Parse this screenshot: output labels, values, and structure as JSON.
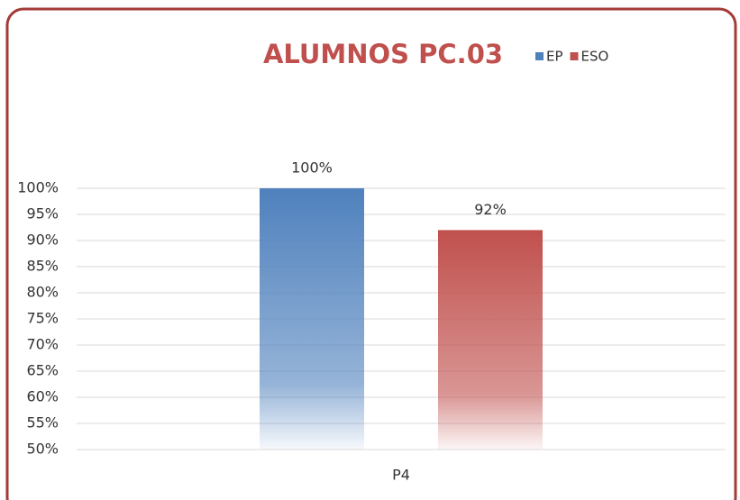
{
  "chart_data": {
    "type": "bar",
    "title": "ALUMNOS PC.03",
    "categories": [
      "P4"
    ],
    "series": [
      {
        "name": "EP",
        "color": "#4f81bd",
        "values": [
          100
        ],
        "value_labels": [
          "100%"
        ]
      },
      {
        "name": "ESO",
        "color": "#c0504d",
        "values": [
          92
        ],
        "value_labels": [
          "92%"
        ]
      }
    ],
    "ylim": [
      50,
      100
    ],
    "yticks": [
      {
        "value": 50,
        "label": "50%"
      },
      {
        "value": 55,
        "label": "55%"
      },
      {
        "value": 60,
        "label": "60%"
      },
      {
        "value": 65,
        "label": "65%"
      },
      {
        "value": 70,
        "label": "70%"
      },
      {
        "value": 75,
        "label": "75%"
      },
      {
        "value": 80,
        "label": "80%"
      },
      {
        "value": 85,
        "label": "85%"
      },
      {
        "value": 90,
        "label": "90%"
      },
      {
        "value": 95,
        "label": "95%"
      },
      {
        "value": 100,
        "label": "100%"
      }
    ],
    "grid": true,
    "legend": "top"
  }
}
